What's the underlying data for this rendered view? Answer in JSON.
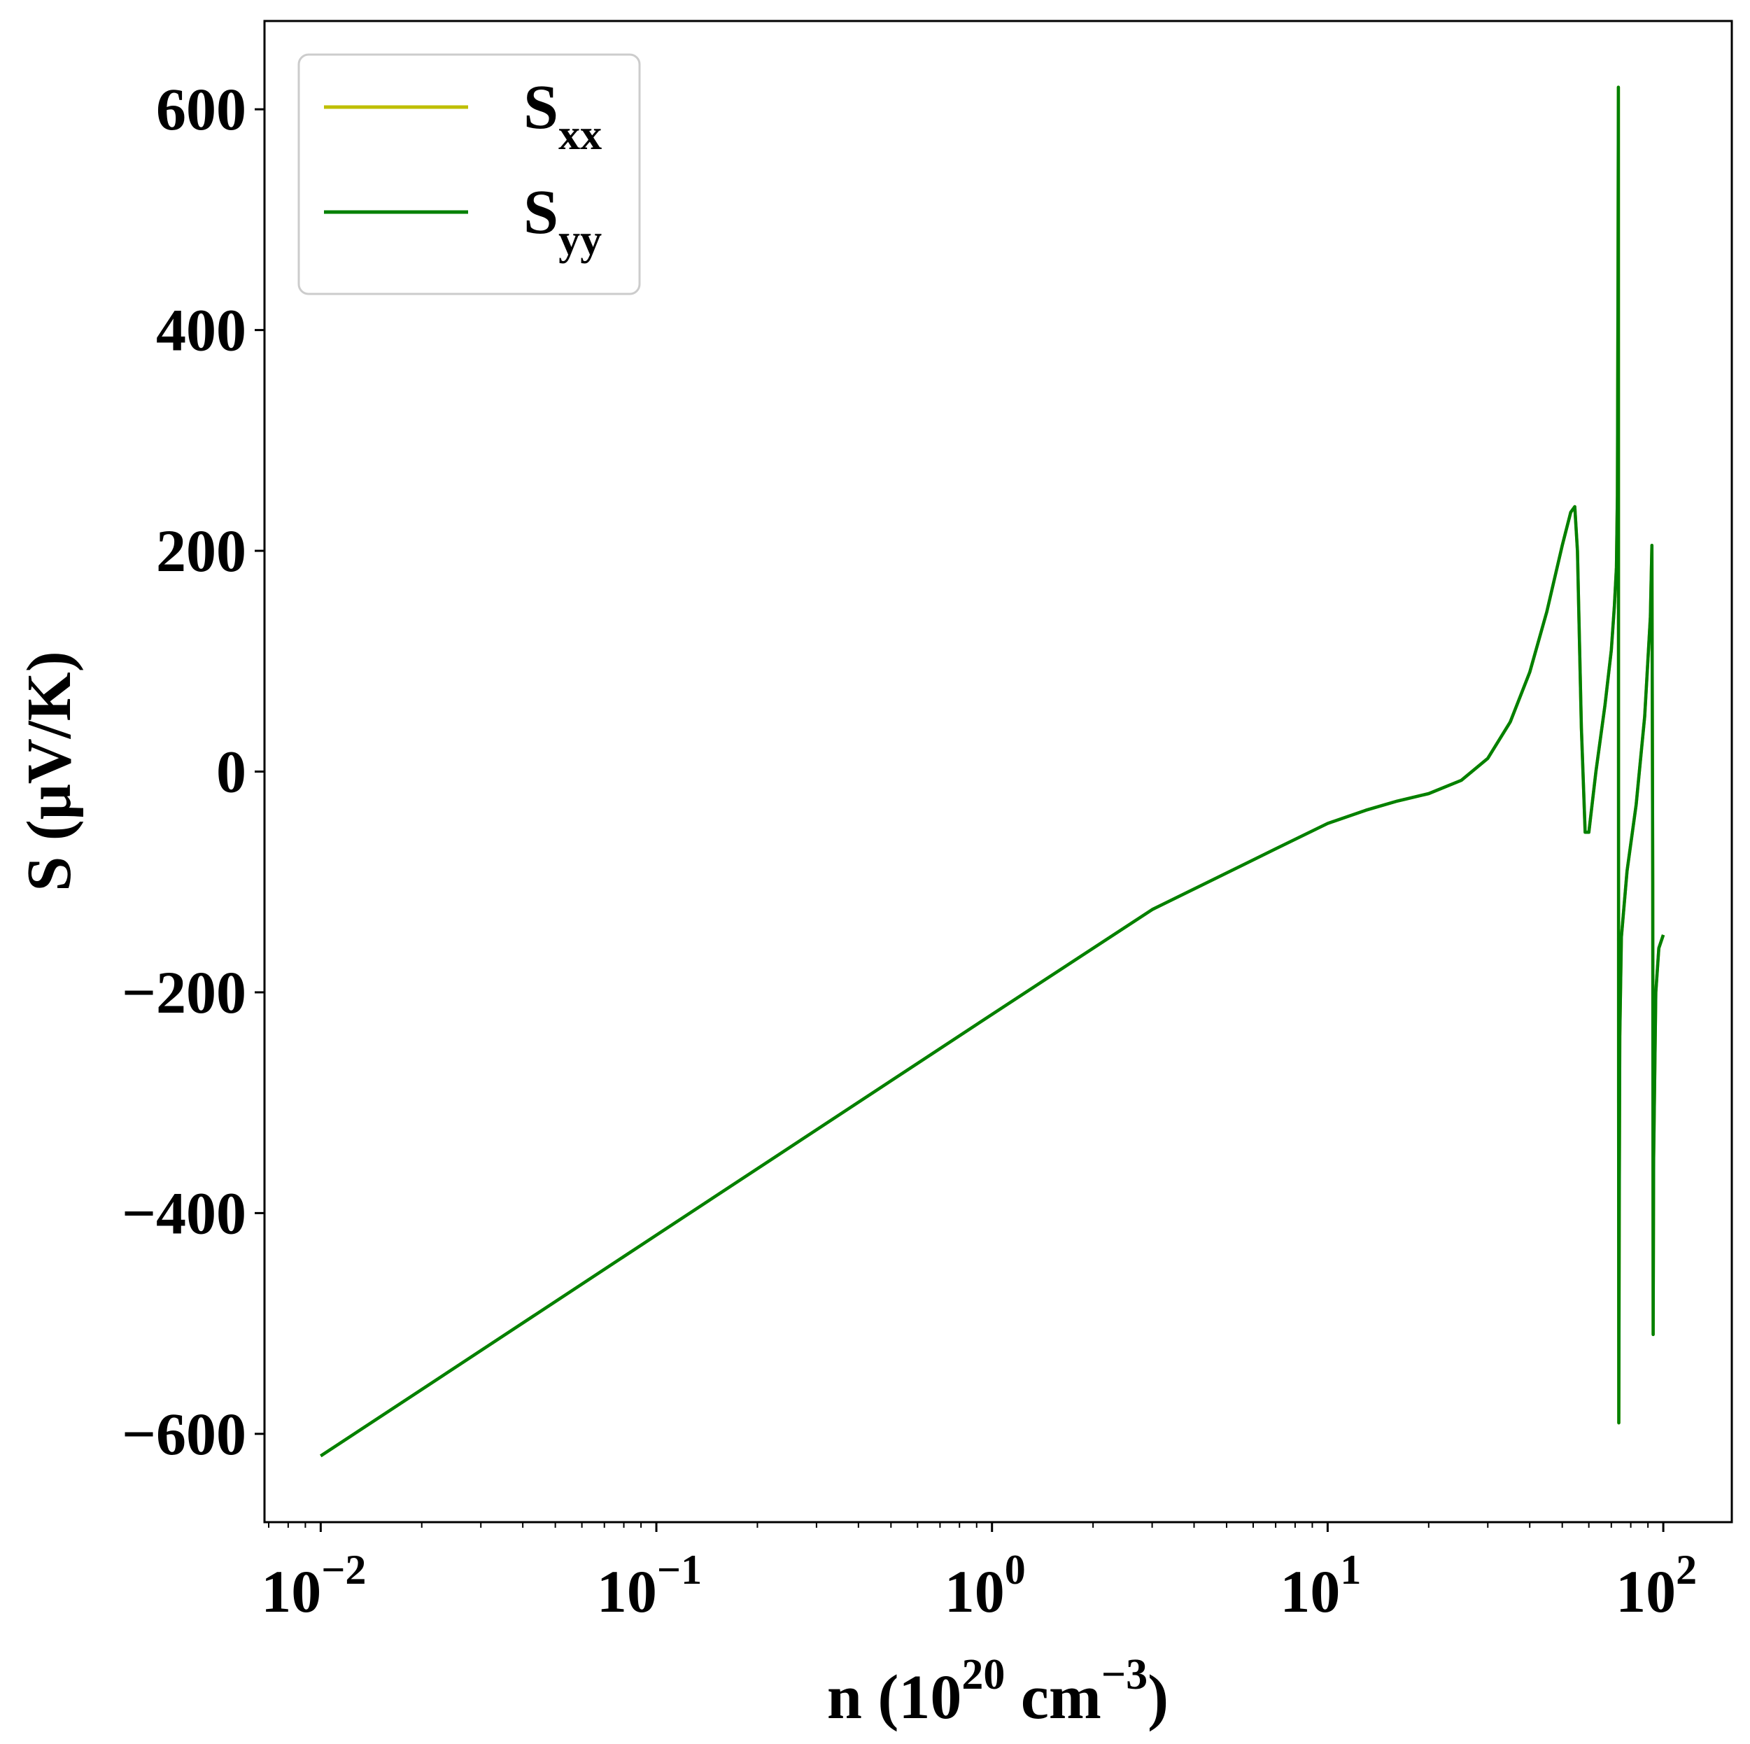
{
  "chart_data": {
    "type": "line",
    "x_scale": "log",
    "xlim": [
      0.0068,
      160
    ],
    "ylim": [
      -680,
      680
    ],
    "grid": false,
    "legend_position": "top-left",
    "xlabel": {
      "prefix": "n (10",
      "sup1": "20",
      "middle": " cm",
      "sup2": "−3",
      "suffix": ")"
    },
    "ylabel": "S (μV/K)",
    "x_ticks": [
      {
        "value": 0.01,
        "base": "10",
        "exp": "−2"
      },
      {
        "value": 0.1,
        "base": "10",
        "exp": "−1"
      },
      {
        "value": 1,
        "base": "10",
        "exp": "0"
      },
      {
        "value": 10,
        "base": "10",
        "exp": "1"
      },
      {
        "value": 100,
        "base": "10",
        "exp": "2"
      }
    ],
    "y_ticks": [
      {
        "value": 600,
        "label": "600"
      },
      {
        "value": 400,
        "label": "400"
      },
      {
        "value": 200,
        "label": "200"
      },
      {
        "value": 0,
        "label": "0"
      },
      {
        "value": -200,
        "label": "−200"
      },
      {
        "value": -400,
        "label": "−400"
      },
      {
        "value": -600,
        "label": "−600"
      }
    ],
    "series": [
      {
        "name": "S_xx",
        "legend_main": "S",
        "legend_sub": "xx",
        "color": "#bfbf00",
        "x": [
          0.01,
          0.1,
          1,
          3,
          7,
          10,
          13,
          16,
          20,
          25,
          30,
          35,
          40,
          45,
          50,
          53,
          54.5,
          55.5,
          57,
          58.5,
          60,
          63,
          67,
          70,
          71.5,
          72.5,
          73,
          73.3,
          73.5,
          73.6,
          73.7,
          73.9,
          74.2,
          75,
          78,
          83,
          88,
          91.5,
          92.5,
          93,
          93.3,
          93.6,
          95,
          97,
          100
        ],
        "y": [
          -620,
          -420,
          -220,
          -125,
          -70,
          -47,
          -35,
          -27,
          -20,
          -8,
          12,
          45,
          90,
          145,
          205,
          235,
          240,
          200,
          40,
          -55,
          -55,
          0,
          60,
          110,
          150,
          185,
          250,
          450,
          620,
          -300,
          -590,
          -400,
          -240,
          -150,
          -90,
          -30,
          50,
          140,
          205,
          -100,
          -510,
          -350,
          -200,
          -160,
          -148
        ]
      },
      {
        "name": "S_yy",
        "legend_main": "S",
        "legend_sub": "yy",
        "color": "#008000",
        "x": [
          0.01,
          0.1,
          1,
          3,
          7,
          10,
          13,
          16,
          20,
          25,
          30,
          35,
          40,
          45,
          50,
          53,
          54.5,
          55.5,
          57,
          58.5,
          60,
          63,
          67,
          70,
          71.5,
          72.5,
          73,
          73.3,
          73.5,
          73.6,
          73.7,
          73.9,
          74.2,
          75,
          78,
          83,
          88,
          91.5,
          92.5,
          93,
          93.3,
          93.6,
          95,
          97,
          100
        ],
        "y": [
          -620,
          -420,
          -220,
          -125,
          -70,
          -47,
          -35,
          -27,
          -20,
          -8,
          12,
          45,
          90,
          145,
          205,
          235,
          240,
          200,
          40,
          -55,
          -55,
          0,
          60,
          110,
          150,
          185,
          250,
          450,
          620,
          -300,
          -590,
          -400,
          -240,
          -150,
          -90,
          -30,
          50,
          140,
          205,
          -100,
          -510,
          -350,
          -200,
          -160,
          -148
        ]
      }
    ]
  }
}
